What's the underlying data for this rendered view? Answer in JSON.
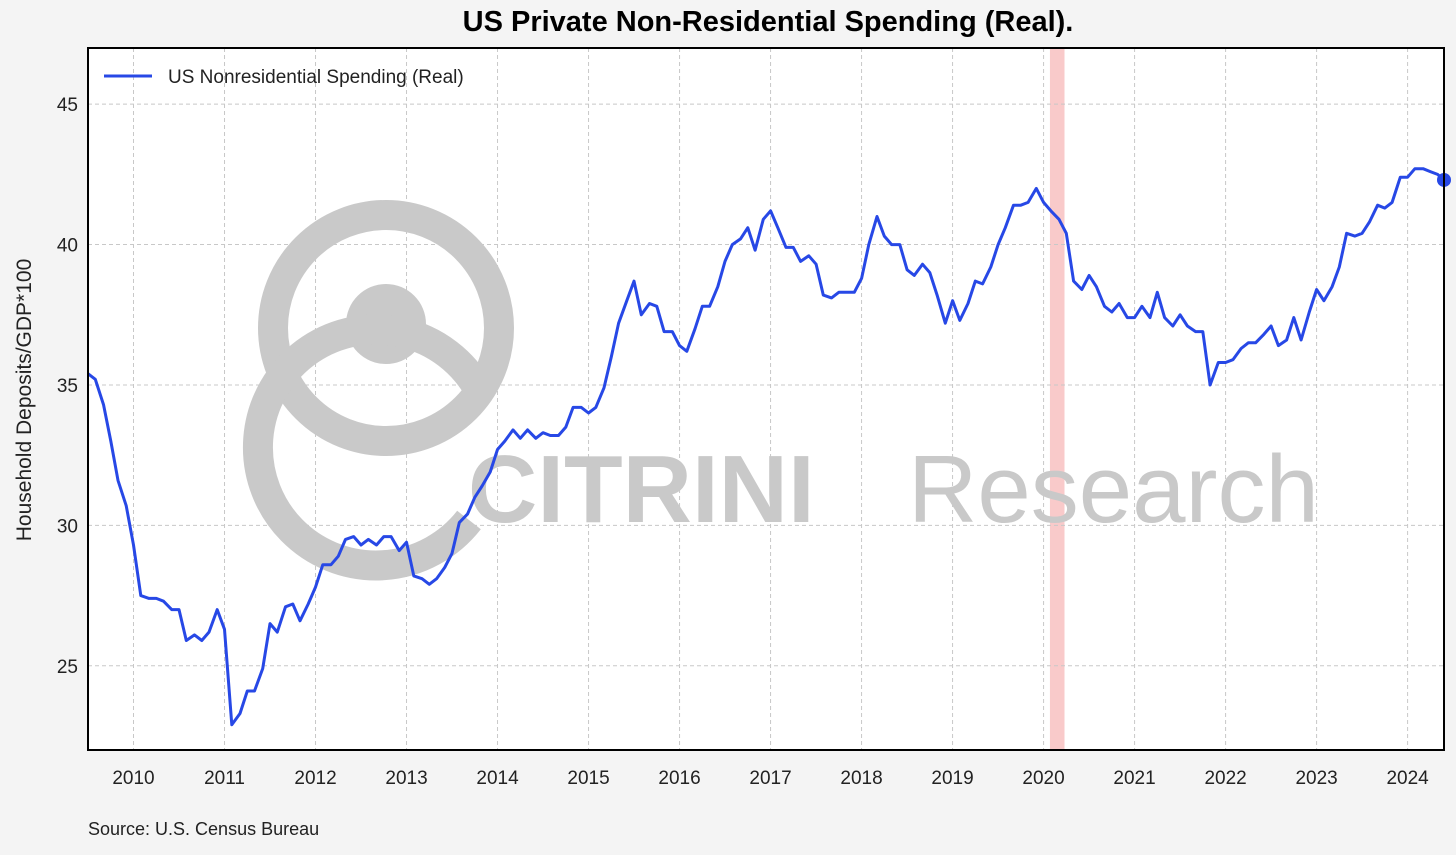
{
  "title": "US Private Non-Residential Spending (Real).",
  "source": "Source: U.S. Census Bureau",
  "watermark": {
    "brand": "CITRINI",
    "suffix": "Research"
  },
  "colors": {
    "line": "#2748e6",
    "recession": "#f7b8b8",
    "grid": "#c8c8c8",
    "watermark": "#c9c9c9"
  },
  "chart_data": {
    "type": "line",
    "title": "US Private Non-Residential Spending (Real).",
    "ylabel": "Household Deposits/GDP*100",
    "xlabel": "",
    "ylim": [
      22,
      47
    ],
    "xlim": [
      2009.5,
      2024.4
    ],
    "yticks": [
      25,
      30,
      35,
      40,
      45
    ],
    "xticks": [
      2010,
      2011,
      2012,
      2013,
      2014,
      2015,
      2016,
      2017,
      2018,
      2019,
      2020,
      2021,
      2022,
      2023,
      2024
    ],
    "grid": true,
    "legend_position": "top-left",
    "recession_band": [
      2020.07,
      2020.23
    ],
    "series": [
      {
        "name": "US Nonresidential Spending (Real)",
        "color": "#2748e6",
        "x": [
          2009.5,
          2009.58,
          2009.67,
          2009.75,
          2009.83,
          2009.92,
          2010.0,
          2010.08,
          2010.17,
          2010.25,
          2010.33,
          2010.42,
          2010.5,
          2010.58,
          2010.67,
          2010.75,
          2010.83,
          2010.92,
          2011.0,
          2011.08,
          2011.17,
          2011.25,
          2011.33,
          2011.42,
          2011.5,
          2011.58,
          2011.67,
          2011.75,
          2011.83,
          2011.92,
          2012.0,
          2012.08,
          2012.17,
          2012.25,
          2012.33,
          2012.42,
          2012.5,
          2012.58,
          2012.67,
          2012.75,
          2012.83,
          2012.92,
          2013.0,
          2013.08,
          2013.17,
          2013.25,
          2013.33,
          2013.42,
          2013.5,
          2013.58,
          2013.67,
          2013.75,
          2013.83,
          2013.92,
          2014.0,
          2014.08,
          2014.17,
          2014.25,
          2014.33,
          2014.42,
          2014.5,
          2014.58,
          2014.67,
          2014.75,
          2014.83,
          2014.92,
          2015.0,
          2015.08,
          2015.17,
          2015.25,
          2015.33,
          2015.42,
          2015.5,
          2015.58,
          2015.67,
          2015.75,
          2015.83,
          2015.92,
          2016.0,
          2016.08,
          2016.17,
          2016.25,
          2016.33,
          2016.42,
          2016.5,
          2016.58,
          2016.67,
          2016.75,
          2016.83,
          2016.92,
          2017.0,
          2017.08,
          2017.17,
          2017.25,
          2017.33,
          2017.42,
          2017.5,
          2017.58,
          2017.67,
          2017.75,
          2017.83,
          2017.92,
          2018.0,
          2018.08,
          2018.17,
          2018.25,
          2018.33,
          2018.42,
          2018.5,
          2018.58,
          2018.67,
          2018.75,
          2018.83,
          2018.92,
          2019.0,
          2019.08,
          2019.17,
          2019.25,
          2019.33,
          2019.42,
          2019.5,
          2019.58,
          2019.67,
          2019.75,
          2019.83,
          2019.92,
          2020.0,
          2020.08,
          2020.17,
          2020.25,
          2020.33,
          2020.42,
          2020.5,
          2020.58,
          2020.67,
          2020.75,
          2020.83,
          2020.92,
          2021.0,
          2021.08,
          2021.17,
          2021.25,
          2021.33,
          2021.42,
          2021.5,
          2021.58,
          2021.67,
          2021.75,
          2021.83,
          2021.92,
          2022.0,
          2022.08,
          2022.17,
          2022.25,
          2022.33,
          2022.42,
          2022.5,
          2022.58,
          2022.67,
          2022.75,
          2022.83,
          2022.92,
          2023.0,
          2023.08,
          2023.17,
          2023.25,
          2023.33,
          2023.42,
          2023.5,
          2023.58,
          2023.67,
          2023.75,
          2023.83,
          2023.92,
          2024.0,
          2024.08,
          2024.17,
          2024.25,
          2024.33,
          2024.4
        ],
        "y": [
          35.4,
          35.2,
          34.3,
          33.0,
          31.6,
          30.7,
          29.3,
          27.5,
          27.4,
          27.4,
          27.3,
          27.0,
          27.0,
          25.9,
          26.1,
          25.9,
          26.2,
          27.0,
          26.3,
          22.9,
          23.3,
          24.1,
          24.1,
          24.9,
          26.5,
          26.2,
          27.1,
          27.2,
          26.6,
          27.2,
          27.8,
          28.6,
          28.6,
          28.9,
          29.5,
          29.6,
          29.3,
          29.5,
          29.3,
          29.6,
          29.6,
          29.1,
          29.4,
          28.2,
          28.1,
          27.9,
          28.1,
          28.5,
          29.0,
          30.1,
          30.4,
          31.0,
          31.4,
          31.9,
          32.7,
          33.0,
          33.4,
          33.1,
          33.4,
          33.1,
          33.3,
          33.2,
          33.2,
          33.5,
          34.2,
          34.2,
          34.0,
          34.2,
          34.9,
          36.0,
          37.2,
          38.0,
          38.7,
          37.5,
          37.9,
          37.8,
          36.9,
          36.9,
          36.4,
          36.2,
          37.0,
          37.8,
          37.8,
          38.5,
          39.4,
          40.0,
          40.2,
          40.6,
          39.8,
          40.9,
          41.2,
          40.6,
          39.9,
          39.9,
          39.4,
          39.6,
          39.3,
          38.2,
          38.1,
          38.3,
          38.3,
          38.3,
          38.8,
          40.0,
          41.0,
          40.3,
          40.0,
          40.0,
          39.1,
          38.9,
          39.3,
          39.0,
          38.2,
          37.2,
          38.0,
          37.3,
          37.9,
          38.7,
          38.6,
          39.2,
          40.0,
          40.6,
          41.4,
          41.4,
          41.5,
          42.0,
          41.5,
          41.2,
          40.9,
          40.4,
          38.7,
          38.4,
          38.9,
          38.5,
          37.8,
          37.6,
          37.9,
          37.4,
          37.4,
          37.8,
          37.4,
          38.3,
          37.4,
          37.1,
          37.5,
          37.1,
          36.9,
          36.9,
          35.0,
          35.8,
          35.8,
          35.9,
          36.3,
          36.5,
          36.5,
          36.8,
          37.1,
          36.4,
          36.6,
          37.4,
          36.6,
          37.6,
          38.4,
          38.0,
          38.5,
          39.2,
          40.4,
          40.3,
          40.4,
          40.8,
          41.4,
          41.3,
          41.5,
          42.4,
          42.4,
          42.7,
          42.7,
          42.6,
          42.5,
          42.3
        ]
      }
    ]
  }
}
